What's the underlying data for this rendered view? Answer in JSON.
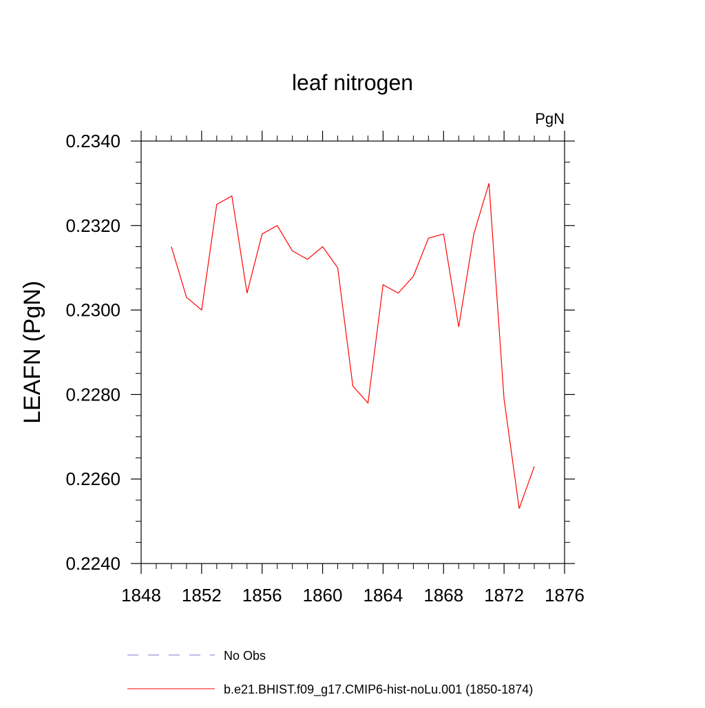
{
  "chart_data": {
    "type": "line",
    "title": "leaf nitrogen",
    "units_label": "PgN",
    "ylabel": "LEAFN  (PgN)",
    "xlabel": "",
    "xlim": [
      1848,
      1876
    ],
    "ylim": [
      0.224,
      0.234
    ],
    "x_ticks": [
      1848,
      1852,
      1856,
      1860,
      1864,
      1868,
      1872,
      1876
    ],
    "x_tick_labels": [
      "1848",
      "1852",
      "1856",
      "1860",
      "1864",
      "1868",
      "1872",
      "1876"
    ],
    "y_ticks": [
      0.224,
      0.226,
      0.228,
      0.23,
      0.232,
      0.234
    ],
    "y_tick_labels": [
      "0.2240",
      "0.2260",
      "0.2280",
      "0.2300",
      "0.2320",
      "0.2340"
    ],
    "grid": false,
    "legend_position": "bottom",
    "series": [
      {
        "name": "b.e21.BHIST.f09_g17.CMIP6-hist-noLu.001 (1850-1874)",
        "color": "#ff0000",
        "style": "solid",
        "x": [
          1850,
          1851,
          1852,
          1853,
          1854,
          1855,
          1856,
          1857,
          1858,
          1859,
          1860,
          1861,
          1862,
          1863,
          1864,
          1865,
          1866,
          1867,
          1868,
          1869,
          1870,
          1871,
          1872,
          1873,
          1874
        ],
        "values": [
          0.2315,
          0.2303,
          0.23,
          0.2325,
          0.2327,
          0.2304,
          0.2318,
          0.232,
          0.2314,
          0.2312,
          0.2315,
          0.231,
          0.2282,
          0.2278,
          0.2306,
          0.2304,
          0.2308,
          0.2317,
          0.2318,
          0.2296,
          0.2318,
          0.233,
          0.2279,
          0.2253,
          0.2263
        ]
      }
    ],
    "legend": [
      {
        "label": "No Obs",
        "color": "#7777cc",
        "style": "dashed"
      },
      {
        "label": "b.e21.BHIST.f09_g17.CMIP6-hist-noLu.001 (1850-1874)",
        "color": "#ff0000",
        "style": "solid"
      }
    ]
  }
}
